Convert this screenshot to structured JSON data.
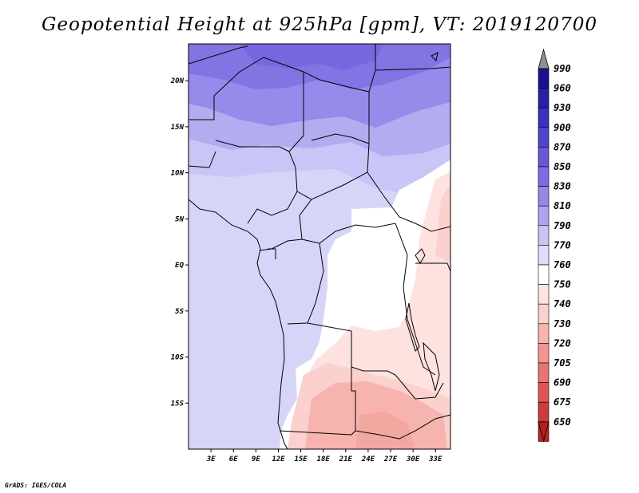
{
  "title": "Geopotential Height at 925hPa [gpm], VT: 2019120700",
  "footer": "GrADS: IGES/COLA",
  "map": {
    "lon_range": [
      0,
      35
    ],
    "lat_range": [
      -20,
      24
    ],
    "lat_ticks": [
      {
        "value": 20,
        "label": "20N"
      },
      {
        "value": 15,
        "label": "15N"
      },
      {
        "value": 10,
        "label": "10N"
      },
      {
        "value": 5,
        "label": "5N"
      },
      {
        "value": 0,
        "label": "EQ"
      },
      {
        "value": -5,
        "label": "5S"
      },
      {
        "value": -10,
        "label": "10S"
      },
      {
        "value": -15,
        "label": "15S"
      }
    ],
    "lon_ticks": [
      {
        "value": 3,
        "label": "3E"
      },
      {
        "value": 6,
        "label": "6E"
      },
      {
        "value": 9,
        "label": "9E"
      },
      {
        "value": 12,
        "label": "12E"
      },
      {
        "value": 15,
        "label": "15E"
      },
      {
        "value": 18,
        "label": "18E"
      },
      {
        "value": 21,
        "label": "21E"
      },
      {
        "value": 24,
        "label": "24E"
      },
      {
        "value": 27,
        "label": "27E"
      },
      {
        "value": 30,
        "label": "30E"
      },
      {
        "value": 33,
        "label": "33E"
      }
    ]
  },
  "colorbar": {
    "levels": [
      "990",
      "960",
      "930",
      "900",
      "870",
      "850",
      "830",
      "810",
      "790",
      "770",
      "760",
      "750",
      "740",
      "730",
      "720",
      "705",
      "690",
      "675",
      "650"
    ],
    "colors": [
      "#1a0f8c",
      "#2a1ea6",
      "#3d30bf",
      "#4f44cc",
      "#6658d6",
      "#7b6fe0",
      "#9488e8",
      "#aca4f0",
      "#c8c4f6",
      "#dedcfa",
      "#ffffff",
      "#fde4e2",
      "#fbd0cd",
      "#f7b4ae",
      "#f09690",
      "#e87571",
      "#de5555",
      "#cf3a3a",
      "#bb2323"
    ],
    "top_arrow_color": "#909090",
    "bottom_arrow_color": "#b41e1e"
  }
}
